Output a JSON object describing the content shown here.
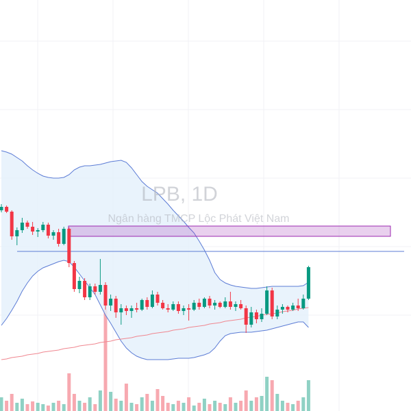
{
  "chart_data": {
    "type": "candlestick",
    "title": "LPB, 1D",
    "subtitle": "Ngân hàng TMCP Lộc Phát Việt Nam",
    "up_color": "#089981",
    "down_color": "#f23645",
    "ylim": [
      12,
      72
    ],
    "open": [
      41.3,
      41.8,
      41.1,
      37.5,
      38.4,
      39.5,
      38.9,
      38.2,
      38.4,
      39.2,
      37.6,
      38.1,
      36.4,
      38.6,
      33.6,
      29.8,
      31.0,
      28.6,
      30.2,
      29.4,
      30.4,
      27.4,
      28.4,
      26.4,
      27.0,
      26.6,
      27.0,
      26.8,
      28.2,
      27.2,
      29.0,
      27.8,
      27.0,
      26.8,
      27.6,
      26.6,
      27.0,
      26.8,
      27.8,
      27.2,
      28.4,
      27.4,
      27.8,
      27.2,
      28.0,
      27.2,
      27.6,
      27.0,
      24.6,
      26.4,
      25.4,
      26.2,
      29.6,
      25.8,
      26.8,
      27.2,
      26.8,
      27.4,
      27.0,
      28.4
    ],
    "high": [
      42.2,
      42.0,
      41.3,
      38.8,
      40.2,
      39.8,
      39.6,
      38.7,
      39.6,
      39.5,
      38.4,
      38.6,
      38.9,
      38.8,
      33.9,
      31.6,
      31.4,
      30.6,
      30.6,
      34.2,
      30.8,
      29.0,
      28.8,
      27.6,
      27.4,
      27.4,
      27.8,
      28.4,
      28.6,
      29.6,
      29.4,
      28.2,
      27.6,
      28.0,
      28.0,
      27.4,
      27.6,
      28.2,
      28.4,
      28.6,
      28.8,
      28.2,
      28.0,
      28.6,
      29.4,
      28.0,
      28.2,
      27.4,
      27.2,
      26.8,
      27.0,
      30.2,
      30.0,
      27.4,
      27.6,
      27.4,
      27.8,
      28.4,
      29.0,
      33.2
    ],
    "low": [
      41.0,
      40.9,
      37.0,
      36.2,
      38.0,
      38.6,
      37.7,
      37.4,
      38.1,
      37.2,
      37.0,
      36.0,
      36.2,
      33.0,
      29.4,
      29.2,
      28.2,
      28.2,
      29.0,
      29.0,
      26.8,
      26.6,
      25.6,
      24.6,
      26.0,
      25.6,
      26.4,
      26.6,
      26.8,
      27.0,
      27.4,
      26.8,
      26.4,
      26.6,
      26.2,
      26.0,
      25.2,
      26.6,
      26.8,
      27.0,
      27.0,
      26.8,
      27.0,
      27.0,
      26.8,
      26.6,
      26.8,
      23.4,
      24.2,
      24.8,
      25.0,
      26.0,
      25.4,
      25.4,
      26.2,
      26.4,
      26.6,
      26.6,
      26.8,
      28.2
    ],
    "close": [
      41.8,
      41.1,
      37.5,
      38.4,
      39.5,
      38.9,
      38.2,
      38.4,
      39.2,
      37.6,
      38.1,
      36.4,
      38.6,
      33.6,
      29.8,
      31.0,
      28.6,
      30.2,
      29.4,
      30.4,
      27.4,
      28.4,
      26.4,
      27.0,
      26.6,
      27.0,
      26.8,
      28.2,
      27.2,
      29.0,
      27.8,
      27.0,
      26.8,
      27.6,
      26.6,
      27.0,
      26.8,
      27.8,
      27.2,
      28.4,
      27.4,
      27.8,
      27.2,
      28.0,
      27.2,
      27.6,
      27.0,
      24.6,
      26.4,
      25.4,
      26.2,
      29.6,
      25.8,
      26.8,
      27.2,
      26.8,
      27.4,
      27.0,
      28.4,
      33.0
    ],
    "bands": {
      "color": "#5b7bd5",
      "fill": "#e3f0fb",
      "upper": [
        50.0,
        49.8,
        49.5,
        49.0,
        48.5,
        47.8,
        47.2,
        46.7,
        46.3,
        46.1,
        46.0,
        46.0,
        46.1,
        46.5,
        47.2,
        47.6,
        47.8,
        47.8,
        47.9,
        48.0,
        48.2,
        48.4,
        48.5,
        48.6,
        48.3,
        47.5,
        46.5,
        45.5,
        44.8,
        44.3,
        43.8,
        43.0,
        42.2,
        41.3,
        40.5,
        39.7,
        38.8,
        38.0,
        36.8,
        35.5,
        34.0,
        32.2,
        31.2,
        30.7,
        30.4,
        30.2,
        30.1,
        30.0,
        29.9,
        29.9,
        30.0,
        30.1,
        30.2,
        30.2,
        30.2,
        30.2,
        30.2,
        30.2,
        30.3,
        30.8
      ],
      "lower": [
        24.5,
        25.5,
        26.7,
        28.0,
        29.5,
        30.7,
        31.7,
        32.4,
        32.9,
        33.2,
        33.5,
        33.8,
        34.0,
        33.8,
        33.0,
        32.0,
        31.0,
        30.0,
        29.0,
        27.5,
        26.0,
        24.8,
        23.5,
        22.2,
        21.2,
        20.5,
        20.0,
        19.7,
        19.5,
        19.5,
        19.5,
        19.5,
        19.5,
        19.6,
        19.7,
        19.7,
        19.7,
        19.8,
        20.0,
        20.2,
        20.5,
        21.2,
        22.2,
        23.0,
        23.3,
        23.4,
        23.5,
        23.5,
        23.5,
        23.6,
        23.7,
        23.8,
        24.0,
        24.2,
        24.4,
        24.6,
        24.8,
        25.0,
        25.0,
        24.2
      ]
    },
    "ma": {
      "color": "#f0868f",
      "values": [
        19.5,
        19.6,
        19.8,
        19.9,
        20.0,
        20.2,
        20.3,
        20.4,
        20.6,
        20.7,
        20.8,
        20.9,
        21.1,
        21.2,
        21.3,
        21.5,
        21.6,
        21.7,
        21.8,
        22.0,
        22.1,
        22.2,
        22.4,
        22.5,
        22.6,
        22.7,
        22.9,
        23.0,
        23.1,
        23.3,
        23.4,
        23.5,
        23.6,
        23.8,
        23.9,
        24.0,
        24.2,
        24.3,
        24.4,
        24.5,
        24.7,
        24.8,
        24.9,
        25.1,
        25.2,
        25.3,
        25.4,
        25.6,
        25.7,
        25.8,
        26.0,
        26.1,
        26.2,
        26.3,
        26.5,
        26.6,
        26.7,
        26.9,
        27.0,
        27.1
      ]
    },
    "zone": {
      "low": 37.5,
      "high": 39.0,
      "color": "#9c27b0"
    },
    "hline": {
      "value": 35.3,
      "color": "#5b7bd5"
    },
    "volume": {
      "ylim": [
        0,
        160
      ],
      "up_color": "#8fd1c4",
      "down_color": "#f7a9b0",
      "values": [
        20,
        15,
        25,
        12,
        18,
        10,
        14,
        12,
        10,
        8,
        12,
        15,
        10,
        55,
        25,
        15,
        12,
        20,
        10,
        30,
        148,
        28,
        18,
        15,
        40,
        12,
        10,
        20,
        25,
        15,
        32,
        22,
        12,
        10,
        15,
        12,
        20,
        8,
        12,
        18,
        10,
        15,
        12,
        10,
        20,
        12,
        15,
        30,
        15,
        20,
        22,
        50,
        45,
        25,
        15,
        12,
        10,
        15,
        20,
        45
      ]
    }
  }
}
